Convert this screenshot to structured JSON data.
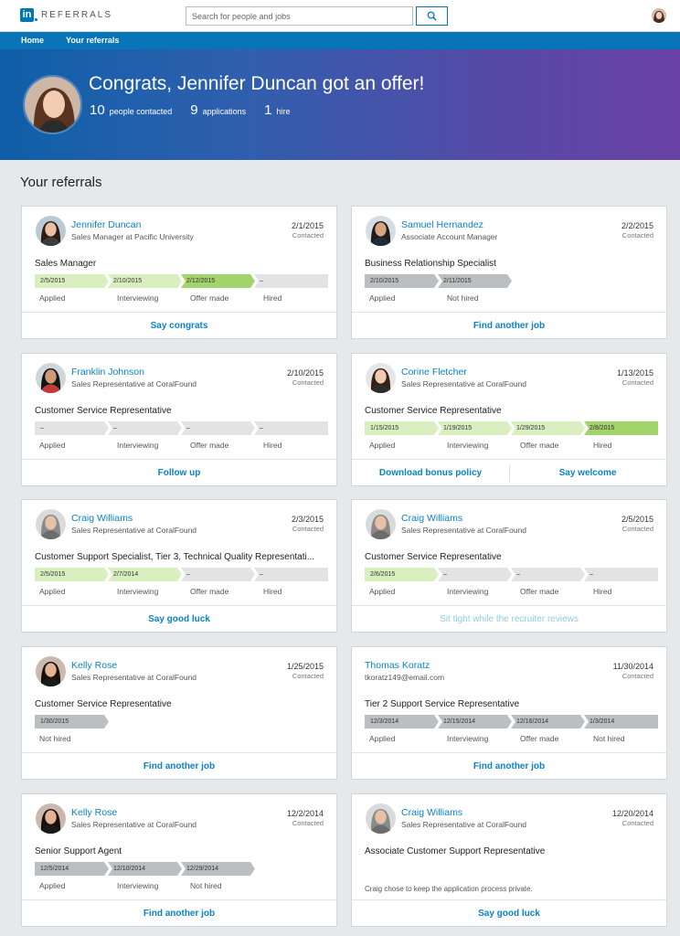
{
  "header": {
    "logo_mark": "in",
    "app_name": "REFERRALS",
    "search_placeholder": "Search for people and jobs"
  },
  "nav": {
    "home": "Home",
    "your_referrals": "Your referrals"
  },
  "hero": {
    "title": "Congrats, Jennifer Duncan got an offer!",
    "stats": [
      {
        "value": "10",
        "label": "people contacted"
      },
      {
        "value": "9",
        "label": "applications"
      },
      {
        "value": "1",
        "label": "hire"
      }
    ]
  },
  "section_title": "Your referrals",
  "contacted_label": "Contacted",
  "referrals": [
    {
      "name": "Jennifer Duncan",
      "subtitle": "Sales Manager at Pacific University",
      "date": "2/1/2015",
      "job": "Sales Manager",
      "stages": [
        {
          "value": "2/5/2015",
          "label": "Applied",
          "status": "light"
        },
        {
          "value": "2/10/2015",
          "label": "Interviewing",
          "status": "light"
        },
        {
          "value": "2/12/2015",
          "label": "Offer made",
          "status": "green"
        },
        {
          "value": "–",
          "label": "Hired",
          "status": "empty"
        }
      ],
      "actions": [
        {
          "label": "Say congrats",
          "style": "primary"
        }
      ]
    },
    {
      "name": "Samuel Hernandez",
      "subtitle": "Associate Account Manager",
      "date": "2/2/2015",
      "job": "Business Relationship Specialist",
      "stages": [
        {
          "value": "2/10/2015",
          "label": "Applied",
          "status": "gray"
        },
        {
          "value": "2/11/2015",
          "label": "Not hired",
          "status": "gray"
        }
      ],
      "actions": [
        {
          "label": "Find another job",
          "style": "primary"
        }
      ]
    },
    {
      "name": "Franklin Johnson",
      "subtitle": "Sales Representative at CoralFound",
      "date": "2/10/2015",
      "job": "Customer Service Representative",
      "stages": [
        {
          "value": "–",
          "label": "Applied",
          "status": "empty"
        },
        {
          "value": "–",
          "label": "Interviewing",
          "status": "empty"
        },
        {
          "value": "–",
          "label": "Offer made",
          "status": "empty"
        },
        {
          "value": "–",
          "label": "Hired",
          "status": "empty"
        }
      ],
      "actions": [
        {
          "label": "Follow up",
          "style": "primary"
        }
      ]
    },
    {
      "name": "Corine Fletcher",
      "subtitle": "Sales Representative at CoralFound",
      "date": "1/13/2015",
      "job": "Customer Service Representative",
      "stages": [
        {
          "value": "1/15/2015",
          "label": "Applied",
          "status": "light"
        },
        {
          "value": "1/19/2015",
          "label": "Interviewing",
          "status": "light"
        },
        {
          "value": "1/29/2015",
          "label": "Offer made",
          "status": "light"
        },
        {
          "value": "2/8/2015",
          "label": "Hired",
          "status": "green"
        }
      ],
      "actions": [
        {
          "label": "Download bonus policy",
          "style": "primary"
        },
        {
          "label": "Say welcome",
          "style": "primary"
        }
      ]
    },
    {
      "name": "Craig Williams",
      "subtitle": "Sales Representative at CoralFound",
      "date": "2/3/2015",
      "job": "Customer Support Specialist, Tier 3, Technical Quality Representati...",
      "stages": [
        {
          "value": "2/5/2015",
          "label": "Applied",
          "status": "light"
        },
        {
          "value": "2/7/2014",
          "label": "Interviewing",
          "status": "light"
        },
        {
          "value": "–",
          "label": "Offer made",
          "status": "empty"
        },
        {
          "value": "–",
          "label": "Hired",
          "status": "empty"
        }
      ],
      "actions": [
        {
          "label": "Say good luck",
          "style": "primary"
        }
      ]
    },
    {
      "name": "Craig Williams",
      "subtitle": "Sales Representative at CoralFound",
      "date": "2/5/2015",
      "job": "Customer Service Representative",
      "stages": [
        {
          "value": "2/6/2015",
          "label": "Applied",
          "status": "light"
        },
        {
          "value": "–",
          "label": "Interviewing",
          "status": "empty"
        },
        {
          "value": "–",
          "label": "Offer made",
          "status": "empty"
        },
        {
          "value": "–",
          "label": "Hired",
          "status": "empty"
        }
      ],
      "actions": [
        {
          "label": "Sit tight while the recruiter reviews",
          "style": "muted"
        }
      ]
    },
    {
      "name": "Kelly Rose",
      "subtitle": "Sales Representative at CoralFound",
      "date": "1/25/2015",
      "job": "Customer Service Representative",
      "stages": [
        {
          "value": "1/30/2015",
          "label": "Not hired",
          "status": "gray"
        }
      ],
      "actions": [
        {
          "label": "Find another job",
          "style": "primary"
        }
      ]
    },
    {
      "name": "Thomas Koratz",
      "subtitle": "tkoratz149@email.com",
      "date": "11/30/2014",
      "job": "Tier 2 Support Service Representative",
      "stages": [
        {
          "value": "12/3/2014",
          "label": "Applied",
          "status": "gray"
        },
        {
          "value": "12/15/2014",
          "label": "Interviewing",
          "status": "gray"
        },
        {
          "value": "12/16/2014",
          "label": "Offer made",
          "status": "gray"
        },
        {
          "value": "1/3/2014",
          "label": "Not hired",
          "status": "gray"
        }
      ],
      "actions": [
        {
          "label": "Find another job",
          "style": "primary"
        }
      ]
    },
    {
      "name": "Kelly Rose",
      "subtitle": "Sales Representative at CoralFound",
      "date": "12/2/2014",
      "job": "Senior Support Agent",
      "stages": [
        {
          "value": "12/5/2014",
          "label": "Applied",
          "status": "gray"
        },
        {
          "value": "12/10/2014",
          "label": "Interviewing",
          "status": "gray"
        },
        {
          "value": "12/29/2014",
          "label": "Not hired",
          "status": "gray"
        }
      ],
      "actions": [
        {
          "label": "Find another job",
          "style": "primary"
        }
      ]
    },
    {
      "name": "Craig Williams",
      "subtitle": "Sales Representative at CoralFound",
      "date": "12/20/2014",
      "job": "Associate Customer Support Representative",
      "note": "Craig chose to keep the application process private.",
      "stages": [],
      "actions": [
        {
          "label": "Say good luck",
          "style": "primary"
        }
      ]
    }
  ]
}
